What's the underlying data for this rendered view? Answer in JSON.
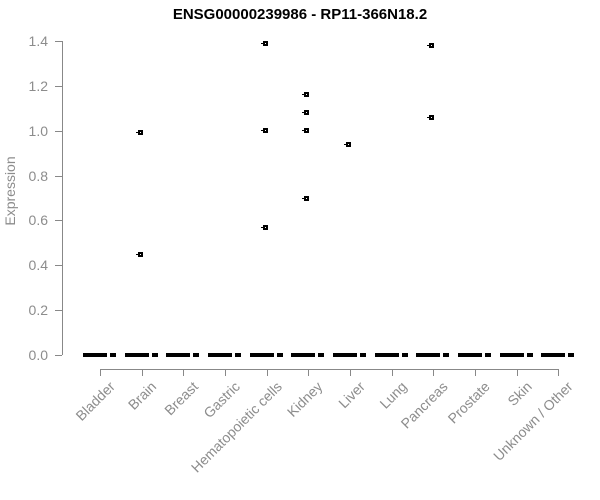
{
  "title": "ENSG00000239986 - RP11-366N18.2",
  "colors": {
    "marker": "#000000",
    "axis_line": "#888888",
    "axis_text": "#8c8c8c",
    "title_text": "#000000",
    "background": "#ffffff"
  },
  "chart_data": {
    "type": "scatter",
    "title": "ENSG00000239986 - RP11-366N18.2",
    "xlabel": "",
    "ylabel": "Expression",
    "ylim": [
      0.0,
      1.4
    ],
    "ytick_labels": [
      "0.0",
      "0.2",
      "0.4",
      "0.6",
      "0.8",
      "1.0",
      "1.2",
      "1.4"
    ],
    "grid": "off",
    "legend": "none",
    "marker": "small-open-square",
    "x_label_rotation_deg": 45,
    "categories": [
      "Bladder",
      "Brain",
      "Breast",
      "Gastric",
      "Hematopoietic cells",
      "Kidney",
      "Liver",
      "Lung",
      "Pancreas",
      "Prostate",
      "Skin",
      "Unknown / Other"
    ],
    "series": [
      {
        "category": "Bladder",
        "zero_cluster_value": 0.0,
        "values": []
      },
      {
        "category": "Brain",
        "zero_cluster_value": 0.0,
        "values": [
          0.99,
          0.45
        ]
      },
      {
        "category": "Breast",
        "zero_cluster_value": 0.0,
        "values": []
      },
      {
        "category": "Gastric",
        "zero_cluster_value": 0.0,
        "values": []
      },
      {
        "category": "Hematopoietic cells",
        "zero_cluster_value": 0.0,
        "values": [
          1.39,
          1.0,
          0.57
        ]
      },
      {
        "category": "Kidney",
        "zero_cluster_value": 0.0,
        "values": [
          1.16,
          1.08,
          1.0,
          0.7
        ]
      },
      {
        "category": "Liver",
        "zero_cluster_value": 0.0,
        "values": [
          0.94
        ]
      },
      {
        "category": "Lung",
        "zero_cluster_value": 0.0,
        "values": []
      },
      {
        "category": "Pancreas",
        "zero_cluster_value": 0.0,
        "values": [
          1.38,
          1.06
        ]
      },
      {
        "category": "Prostate",
        "zero_cluster_value": 0.0,
        "values": []
      },
      {
        "category": "Skin",
        "zero_cluster_value": 0.0,
        "values": []
      },
      {
        "category": "Unknown / Other",
        "zero_cluster_value": 0.0,
        "values": []
      }
    ]
  }
}
